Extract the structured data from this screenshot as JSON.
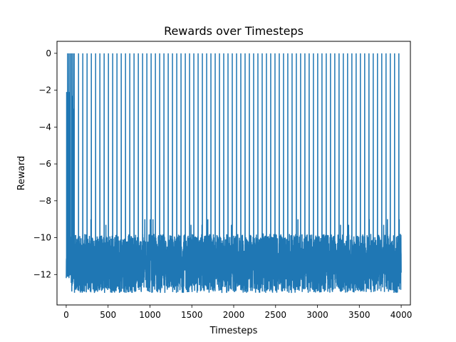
{
  "chart_data": {
    "type": "line",
    "title": "Rewards over Timesteps",
    "xlabel": "Timesteps",
    "ylabel": "Reward",
    "xlim": [
      -110,
      4110
    ],
    "ylim": [
      -13.65,
      0.65
    ],
    "xticks": [
      0,
      500,
      1000,
      1500,
      2000,
      2500,
      3000,
      3500,
      4000
    ],
    "yticks": [
      0,
      -2,
      -4,
      -6,
      -8,
      -10,
      -12
    ],
    "grid": false,
    "series": [
      {
        "color": "#1f77b4",
        "episode_starts": [
          0,
          16,
          32,
          48,
          64,
          80,
          96
        ],
        "episode_period": 51,
        "period_from_timestep": 96,
        "x_end": 4000,
        "terminal_reward": 0,
        "early_spike_rewards": [
          -2.0,
          -2.3,
          -2.1,
          -2.5,
          -3.0
        ],
        "typical_reward_range": [
          -13.0,
          -9.8
        ],
        "occasional_high_rewards": [
          -9.0,
          -9.3
        ]
      }
    ]
  }
}
